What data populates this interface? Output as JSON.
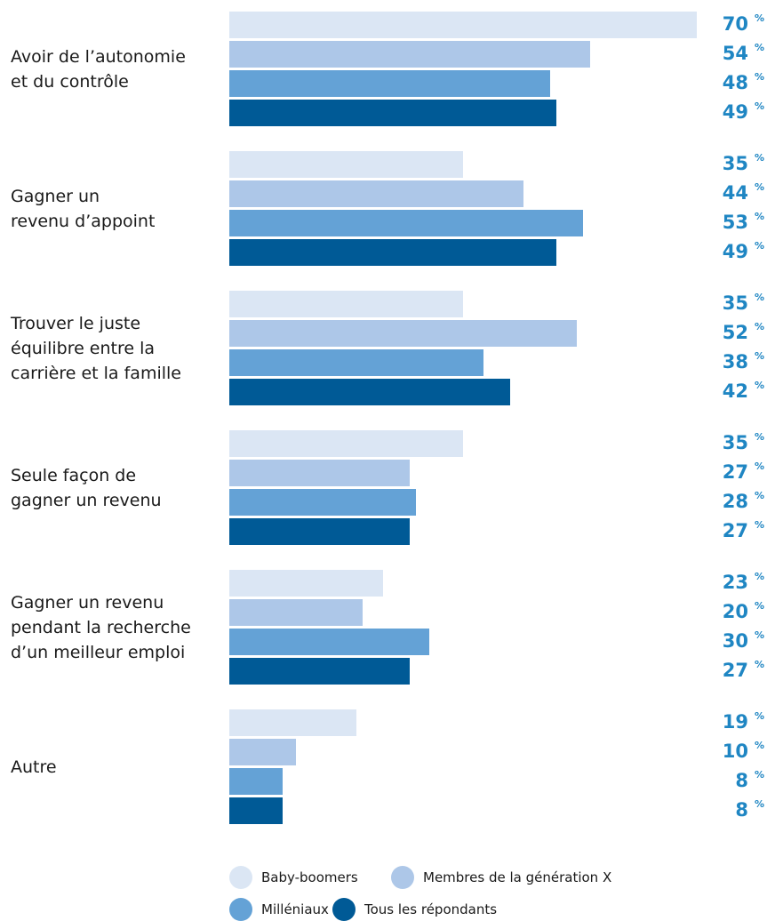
{
  "chart_data": {
    "type": "bar",
    "orientation": "horizontal",
    "unit": "%",
    "categories": [
      "Avoir de l’autonomie\net du contrôle",
      "Gagner un\nrevenu d’appoint",
      "Trouver le juste\néquilibre entre la\ncarrière et la famille",
      "Seule façon de\ngagner un revenu",
      "Gagner un revenu\npendant la recherche\nd’un meilleur emploi",
      "Autre"
    ],
    "series": [
      {
        "name": "Baby-boomers",
        "color": "#dbe6f4",
        "values": [
          70,
          35,
          35,
          35,
          23,
          19
        ]
      },
      {
        "name": "Membres de la génération X",
        "color": "#adc7e8",
        "values": [
          54,
          44,
          52,
          27,
          20,
          10
        ]
      },
      {
        "name": "Milléniaux",
        "color": "#64a2d6",
        "values": [
          48,
          53,
          38,
          28,
          30,
          8
        ]
      },
      {
        "name": "Tous les répondants",
        "color": "#005a96",
        "values": [
          49,
          49,
          42,
          27,
          27,
          8
        ]
      }
    ],
    "xlim": [
      0,
      70
    ],
    "legend_position": "bottom",
    "grid": false
  }
}
